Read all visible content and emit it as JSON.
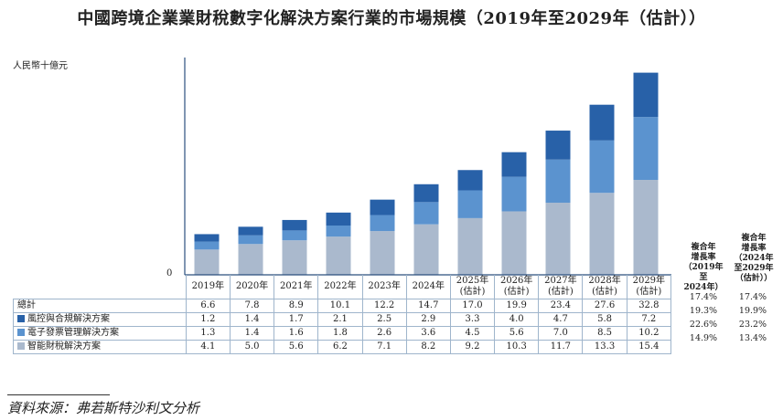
{
  "title": "中國跨境企業業財稅數字化解決方案行業的市場規模（2019年至2029年（估計））",
  "unit_label": "人民幣十億元",
  "zero_label": "0",
  "source": "資料來源：弗若斯特沙利文分析",
  "cagr_headers": [
    "複合年增長率（2019年至2024年）",
    "複合年增長率（2024年至2029年（估計））"
  ],
  "colors": {
    "top": "#2861a8",
    "mid": "#5b93cf",
    "bottom": "#aab9cd",
    "axis": "#2b4f7e"
  },
  "chart_data": {
    "type": "bar",
    "stacked": true,
    "title": "中國跨境企業業財稅數字化解決方案行業的市場規模（2019年至2029年（估計））",
    "ylabel": "人民幣十億元",
    "ylim": [
      0,
      35
    ],
    "categories": [
      "2019年",
      "2020年",
      "2021年",
      "2022年",
      "2023年",
      "2024年",
      "2025年（估計）",
      "2026年（估計）",
      "2027年（估計）",
      "2028年（估計）",
      "2029年（估計）"
    ],
    "category_lines": [
      [
        "2019年"
      ],
      [
        "2020年"
      ],
      [
        "2021年"
      ],
      [
        "2022年"
      ],
      [
        "2023年"
      ],
      [
        "2024年"
      ],
      [
        "2025年",
        "(估計)"
      ],
      [
        "2026年",
        "(估計)"
      ],
      [
        "2027年",
        "(估計)"
      ],
      [
        "2028年",
        "(估計)"
      ],
      [
        "2029年",
        "(估計)"
      ]
    ],
    "totals_label": "總計",
    "totals": [
      "6.6",
      "7.8",
      "8.9",
      "10.1",
      "12.2",
      "14.7",
      "17.0",
      "19.9",
      "23.4",
      "27.6",
      "32.8"
    ],
    "series": [
      {
        "name": "風控與合規解決方案",
        "color": "#2861a8",
        "values": [
          "1.2",
          "1.4",
          "1.7",
          "2.1",
          "2.5",
          "2.9",
          "3.3",
          "4.0",
          "4.7",
          "5.8",
          "7.2"
        ]
      },
      {
        "name": "電子發票管理解決方案",
        "color": "#5b93cf",
        "values": [
          "1.3",
          "1.4",
          "1.6",
          "1.8",
          "2.6",
          "3.6",
          "4.5",
          "5.6",
          "7.0",
          "8.5",
          "10.2"
        ]
      },
      {
        "name": "智能財稅解決方案",
        "color": "#aab9cd",
        "values": [
          "4.1",
          "5.0",
          "5.6",
          "6.2",
          "7.1",
          "8.2",
          "9.2",
          "10.3",
          "11.7",
          "13.3",
          "15.4"
        ]
      }
    ],
    "cagr": {
      "header_lines": [
        [
          "複合年",
          "增長率",
          "（2019年至",
          "2024年）"
        ],
        [
          "複合年",
          "增長率",
          "（2024年",
          "至2029年",
          "（估計））"
        ]
      ],
      "rows": [
        [
          "17.4%",
          "17.4%"
        ],
        [
          "19.3%",
          "19.9%"
        ],
        [
          "22.6%",
          "23.2%"
        ],
        [
          "14.9%",
          "13.4%"
        ]
      ]
    }
  }
}
